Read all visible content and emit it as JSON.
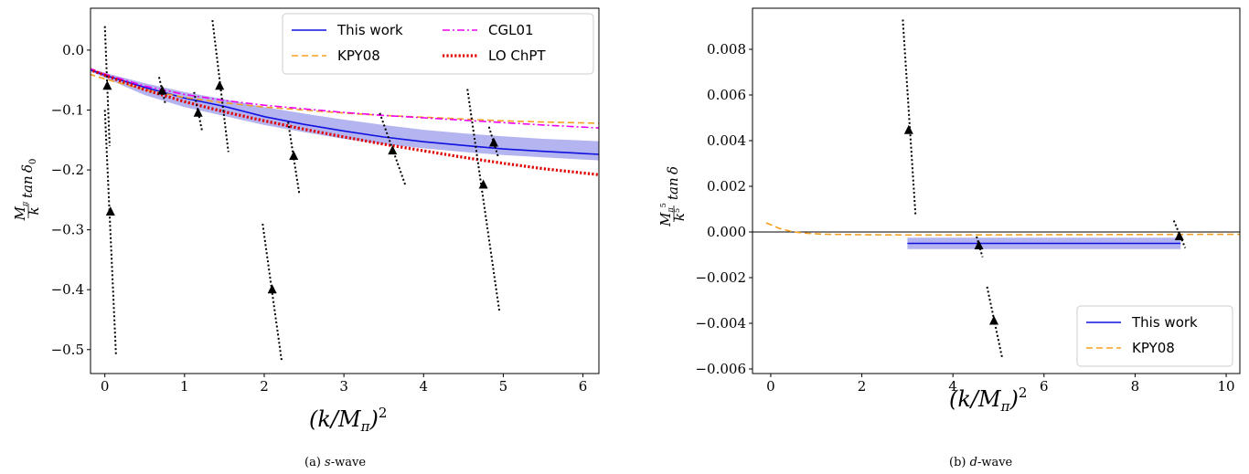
{
  "chart_data": [
    {
      "id": "left",
      "type": "line",
      "xlabel": "(k/M_π)²",
      "ylabel": "(M_π/k) tan δ₀",
      "xlim": [
        -0.18,
        6.2
      ],
      "ylim": [
        -0.54,
        0.07
      ],
      "xticks": [
        0,
        1,
        2,
        3,
        4,
        5,
        6
      ],
      "xtick_labels": [
        "0",
        "1",
        "2",
        "3",
        "4",
        "5",
        "6"
      ],
      "yticks": [
        0.0,
        -0.1,
        -0.2,
        -0.3,
        -0.4,
        -0.5
      ],
      "ytick_labels": [
        "0.0",
        "−0.1",
        "−0.2",
        "−0.3",
        "−0.4",
        "−0.5"
      ],
      "caption": {
        "label": "(a)",
        "italic": "s",
        "rest": "-wave"
      },
      "legend": {
        "placement": "top-right",
        "columns": 2,
        "entries": [
          {
            "name": "This work",
            "color": "#1010e0",
            "style": "solid"
          },
          {
            "name": "CGL01",
            "color": "#ee00ee",
            "style": "dashdot"
          },
          {
            "name": "KPY08",
            "color": "#f5a020",
            "style": "dashed"
          },
          {
            "name": "LO ChPT",
            "color": "#e00000",
            "style": "dotted"
          }
        ]
      },
      "series": [
        {
          "name": "This work",
          "color": "#1010e0",
          "style": "solid",
          "x": [
            -0.2,
            0,
            0.25,
            0.5,
            1,
            1.5,
            2,
            2.5,
            3,
            3.5,
            4,
            4.5,
            5,
            5.5,
            6.2
          ],
          "y": [
            -0.032,
            -0.042,
            -0.052,
            -0.062,
            -0.08,
            -0.094,
            -0.111,
            -0.124,
            -0.135,
            -0.145,
            -0.153,
            -0.159,
            -0.165,
            -0.169,
            -0.174
          ]
        },
        {
          "name": "This work band",
          "color": "#b0b0f0",
          "style": "band",
          "x": [
            -0.2,
            0,
            0.5,
            1,
            1.5,
            2,
            2.5,
            3,
            3.5,
            4,
            4.5,
            5,
            5.5,
            6.2
          ],
          "y_low": [
            -0.034,
            -0.046,
            -0.075,
            -0.095,
            -0.11,
            -0.125,
            -0.137,
            -0.148,
            -0.157,
            -0.164,
            -0.17,
            -0.175,
            -0.179,
            -0.184
          ],
          "y_high": [
            -0.03,
            -0.038,
            -0.055,
            -0.07,
            -0.082,
            -0.095,
            -0.106,
            -0.116,
            -0.125,
            -0.133,
            -0.139,
            -0.144,
            -0.148,
            -0.152
          ]
        },
        {
          "name": "KPY08",
          "color": "#f5a020",
          "style": "dashed",
          "x": [
            -0.2,
            0,
            0.5,
            1,
            1.5,
            2,
            2.5,
            3,
            3.5,
            4,
            4.5,
            5,
            5.5,
            6.2
          ],
          "y": [
            -0.04,
            -0.048,
            -0.066,
            -0.079,
            -0.088,
            -0.095,
            -0.1,
            -0.105,
            -0.109,
            -0.112,
            -0.115,
            -0.118,
            -0.12,
            -0.122
          ]
        },
        {
          "name": "CGL01",
          "color": "#ee00ee",
          "style": "dashdot",
          "x": [
            -0.2,
            0,
            0.5,
            1,
            1.5,
            2,
            2.5,
            3,
            3.5,
            4,
            4.5,
            5,
            5.5,
            6.2
          ],
          "y": [
            -0.03,
            -0.04,
            -0.06,
            -0.074,
            -0.084,
            -0.092,
            -0.098,
            -0.104,
            -0.109,
            -0.113,
            -0.117,
            -0.121,
            -0.125,
            -0.13
          ]
        },
        {
          "name": "LO ChPT",
          "color": "#e00000",
          "style": "dotted",
          "x": [
            -0.2,
            0,
            0.5,
            1,
            1.5,
            2,
            2.5,
            3,
            3.5,
            4,
            4.5,
            5,
            5.5,
            6.2
          ],
          "y": [
            -0.032,
            -0.042,
            -0.066,
            -0.086,
            -0.103,
            -0.118,
            -0.132,
            -0.145,
            -0.157,
            -0.168,
            -0.179,
            -0.189,
            -0.198,
            -0.208
          ]
        }
      ],
      "points": [
        {
          "x": 0.03,
          "y": -0.06,
          "line": [
            [
              0.0,
              0.04
            ],
            [
              0.06,
              -0.16
            ]
          ]
        },
        {
          "x": 0.07,
          "y": -0.27,
          "line": [
            [
              0.0,
              -0.1
            ],
            [
              0.14,
              -0.51
            ]
          ]
        },
        {
          "x": 0.72,
          "y": -0.068,
          "line": [
            [
              0.68,
              -0.045
            ],
            [
              0.76,
              -0.09
            ]
          ]
        },
        {
          "x": 1.17,
          "y": -0.105,
          "line": [
            [
              1.12,
              -0.07
            ],
            [
              1.22,
              -0.135
            ]
          ]
        },
        {
          "x": 1.44,
          "y": -0.06,
          "line": [
            [
              1.35,
              0.05
            ],
            [
              1.55,
              -0.17
            ]
          ]
        },
        {
          "x": 2.1,
          "y": -0.4,
          "line": [
            [
              1.98,
              -0.29
            ],
            [
              2.22,
              -0.52
            ]
          ]
        },
        {
          "x": 2.37,
          "y": -0.177,
          "line": [
            [
              2.3,
              -0.12
            ],
            [
              2.44,
              -0.24
            ]
          ]
        },
        {
          "x": 3.61,
          "y": -0.168,
          "line": [
            [
              3.45,
              -0.105
            ],
            [
              3.77,
              -0.225
            ]
          ]
        },
        {
          "x": 4.75,
          "y": -0.225,
          "line": [
            [
              4.55,
              -0.065
            ],
            [
              4.95,
              -0.435
            ]
          ]
        },
        {
          "x": 4.88,
          "y": -0.155,
          "line": [
            [
              4.82,
              -0.128
            ],
            [
              4.94,
              -0.18
            ]
          ]
        }
      ]
    },
    {
      "id": "right",
      "type": "line",
      "xlabel": "(k/M_π)²",
      "ylabel": "(M_π⁵/k⁵) tan δ",
      "xlim": [
        -0.4,
        10.3
      ],
      "ylim": [
        -0.0062,
        0.0098
      ],
      "xticks": [
        0,
        2,
        4,
        6,
        8,
        10
      ],
      "xtick_labels": [
        "0",
        "2",
        "4",
        "6",
        "8",
        "10"
      ],
      "yticks": [
        0.008,
        0.006,
        0.004,
        0.002,
        0.0,
        -0.002,
        -0.004,
        -0.006
      ],
      "ytick_labels": [
        "0.008",
        "0.006",
        "0.004",
        "0.002",
        "0.000",
        "−0.002",
        "−0.004",
        "−0.006"
      ],
      "caption": {
        "label": "(b)",
        "italic": "d",
        "rest": "-wave"
      },
      "legend": {
        "placement": "bottom-right",
        "columns": 1,
        "entries": [
          {
            "name": "This work",
            "color": "#1010e0",
            "style": "solid"
          },
          {
            "name": "KPY08",
            "color": "#f5a020",
            "style": "dashed"
          }
        ]
      },
      "hline": 0.0,
      "series": [
        {
          "name": "This work band",
          "color": "#b0b0f0",
          "style": "band",
          "x": [
            3.0,
            9.0
          ],
          "y_low": [
            -0.00075,
            -0.00075
          ],
          "y_high": [
            -0.00025,
            -0.00025
          ]
        },
        {
          "name": "This work",
          "color": "#1010e0",
          "style": "solid",
          "x": [
            3.0,
            9.0
          ],
          "y": [
            -0.0005,
            -0.0005
          ]
        },
        {
          "name": "KPY08",
          "color": "#f5a020",
          "style": "dashed",
          "x": [
            -0.1,
            0.2,
            0.5,
            0.8,
            1.2,
            2,
            3,
            4,
            6,
            8,
            10.3
          ],
          "y": [
            0.0004,
            0.00015,
            0.0,
            -6e-05,
            -0.0001,
            -0.00012,
            -0.00013,
            -0.00013,
            -0.00012,
            -0.00011,
            -0.0001
          ]
        }
      ],
      "points": [
        {
          "x": 3.03,
          "y": 0.00445,
          "line": [
            [
              2.9,
              0.0093
            ],
            [
              3.18,
              0.0007
            ]
          ]
        },
        {
          "x": 4.57,
          "y": -0.0006,
          "line": [
            [
              4.52,
              -0.0002
            ],
            [
              4.65,
              -0.0011
            ]
          ]
        },
        {
          "x": 4.9,
          "y": -0.0039,
          "line": [
            [
              4.75,
              -0.0024
            ],
            [
              5.08,
              -0.0055
            ]
          ]
        },
        {
          "x": 8.97,
          "y": -0.0002,
          "line": [
            [
              8.85,
              0.0005
            ],
            [
              9.1,
              -0.0007
            ]
          ]
        }
      ]
    }
  ]
}
